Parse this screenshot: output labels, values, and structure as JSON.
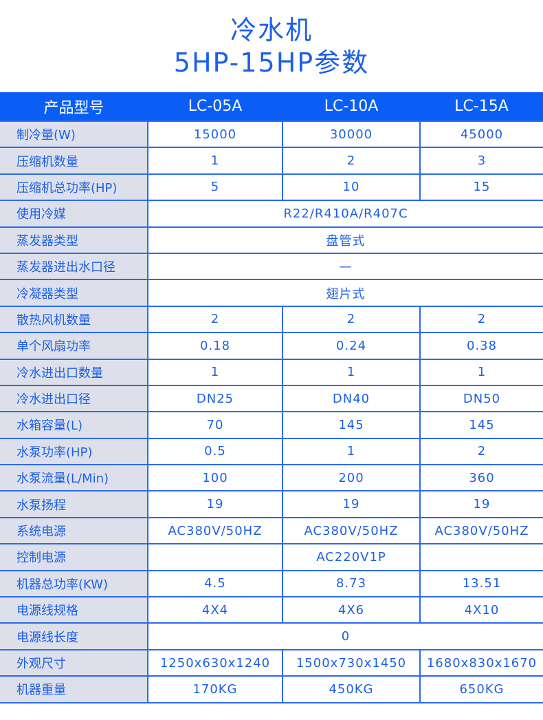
{
  "title": {
    "line1": "冷水机",
    "line2": "5HP-15HP参数"
  },
  "header": [
    "产品型号",
    "LC-05A",
    "LC-10A",
    "LC-15A"
  ],
  "rows": [
    {
      "label": "制冷量(W)",
      "values": [
        "15000",
        "30000",
        "45000"
      ]
    },
    {
      "label": "压缩机数量",
      "values": [
        "1",
        "2",
        "3"
      ]
    },
    {
      "label": "压缩机总功率(HP)",
      "values": [
        "5",
        "10",
        "15"
      ]
    },
    {
      "label": "使用冷媒",
      "merged": "R22/R410A/R407C"
    },
    {
      "label": "蒸发器类型",
      "merged": "盘管式"
    },
    {
      "label": "蒸发器进出水口径",
      "merged": "—"
    },
    {
      "label": "冷凝器类型",
      "merged": "翅片式"
    },
    {
      "label": "散热风机数量",
      "values": [
        "2",
        "2",
        "2"
      ]
    },
    {
      "label": "单个风扇功率",
      "values": [
        "0.18",
        "0.24",
        "0.38"
      ]
    },
    {
      "label": "冷水进出口数量",
      "values": [
        "1",
        "1",
        "1"
      ]
    },
    {
      "label": "冷水进出口径",
      "values": [
        "DN25",
        "DN40",
        "DN50"
      ]
    },
    {
      "label": "水箱容量(L)",
      "values": [
        "70",
        "145",
        "145"
      ]
    },
    {
      "label": "水泵功率(HP)",
      "values": [
        "0.5",
        "1",
        "2"
      ]
    },
    {
      "label": "水泵流量(L/Min)",
      "values": [
        "100",
        "200",
        "360"
      ]
    },
    {
      "label": "水泵扬程",
      "values": [
        "19",
        "19",
        "19"
      ]
    },
    {
      "label": "系统电源",
      "values": [
        "AC380V/50HZ",
        "AC380V/50HZ",
        "AC380V/50HZ"
      ]
    },
    {
      "label": "控制电源",
      "values": [
        "",
        "AC220V1P",
        ""
      ]
    },
    {
      "label": "机器总功率(KW)",
      "values": [
        "4.5",
        "8.73",
        "13.51"
      ]
    },
    {
      "label": "电源线规格",
      "values": [
        "4X4",
        "4X6",
        "4X10"
      ]
    },
    {
      "label": "电源线长度",
      "merged": "0"
    },
    {
      "label": "外观尺寸",
      "values": [
        "1250x630x1240",
        "1500x730x1450",
        "1680x830x1670"
      ]
    },
    {
      "label": "机器重量",
      "values": [
        "170KG",
        "450KG",
        "650KG"
      ]
    }
  ],
  "colors": {
    "header_bg": "#0a5ef5",
    "text": "#1d5fe8",
    "label_bg": "#dde0ea"
  }
}
